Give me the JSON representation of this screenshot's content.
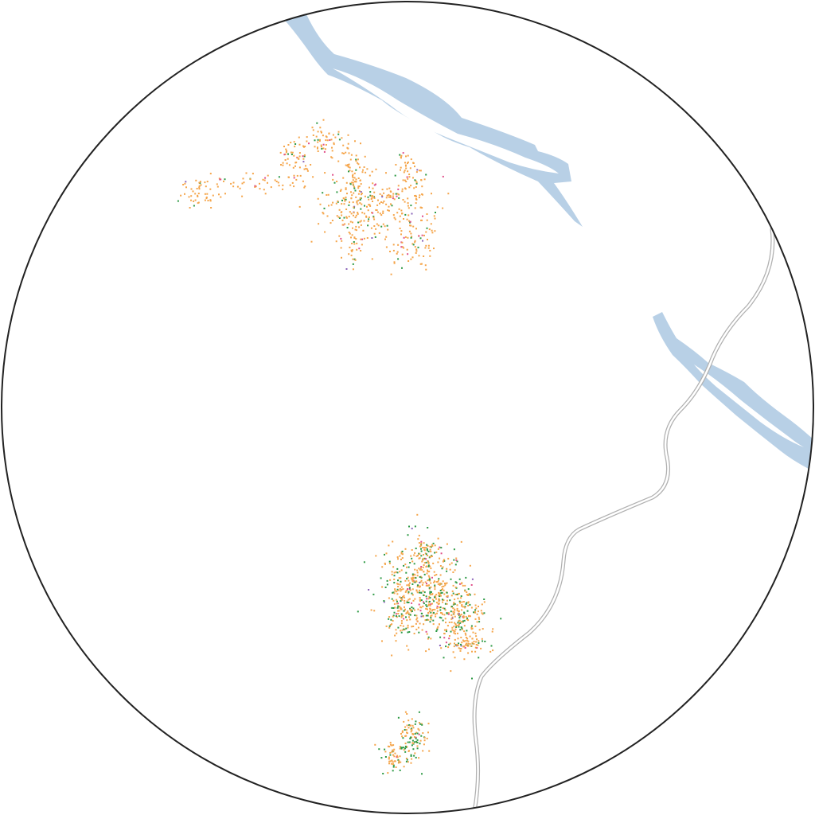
{
  "map": {
    "colors": {
      "background": "#ffffff",
      "frame": "#222222",
      "water": "#b8d0e6",
      "road_casing": "#b0b0b0",
      "road_fill": "#ffffff"
    },
    "dot_categories": [
      {
        "name": "category-orange",
        "color": "#f5a54a"
      },
      {
        "name": "category-green",
        "color": "#2e9a45"
      },
      {
        "name": "category-pink",
        "color": "#e0508a"
      },
      {
        "name": "category-purple",
        "color": "#8a63b8"
      }
    ],
    "settlements": [
      {
        "id": "northwest",
        "dot_count": 700,
        "category_mix": [
          0.84,
          0.11,
          0.03,
          0.02
        ]
      },
      {
        "id": "south-central",
        "dot_count": 850,
        "category_mix": [
          0.71,
          0.25,
          0.03,
          0.01
        ]
      },
      {
        "id": "south",
        "dot_count": 160,
        "category_mix": [
          0.6,
          0.36,
          0.03,
          0.01
        ]
      }
    ]
  }
}
